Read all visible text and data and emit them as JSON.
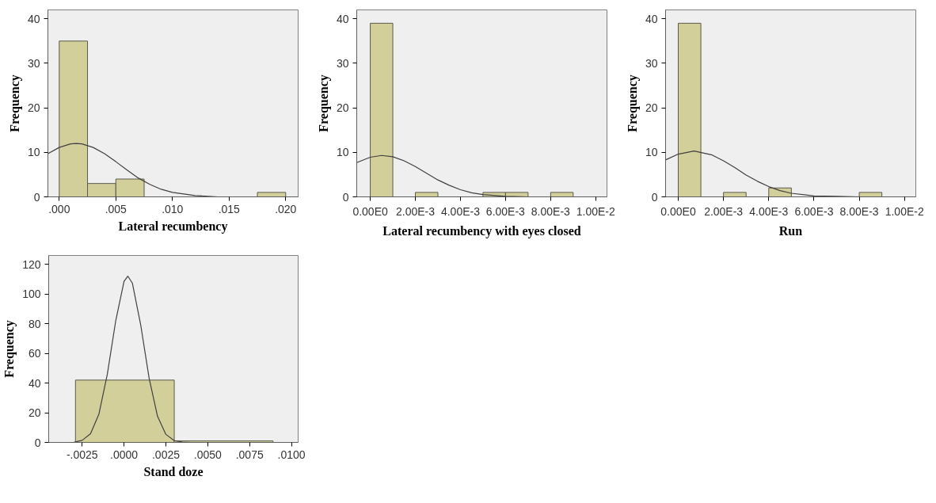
{
  "chart_data": [
    {
      "type": "histogram",
      "xlabel": "Lateral recumbency",
      "ylabel": "Frequency",
      "color": "#d3cf9b",
      "grid": false,
      "bins": [
        0,
        0.0025,
        0.005,
        0.0075,
        0.01,
        0.0125,
        0.015,
        0.0175,
        0.02
      ],
      "values": [
        35,
        3,
        4,
        0,
        0,
        0,
        0,
        1
      ],
      "xlim": [
        -0.001,
        0.0211
      ],
      "ylim": [
        0,
        42
      ],
      "xticks": [
        {
          "value": 0,
          "label": ".000"
        },
        {
          "value": 0.005,
          "label": ".005"
        },
        {
          "value": 0.01,
          "label": ".010"
        },
        {
          "value": 0.015,
          "label": ".015"
        },
        {
          "value": 0.02,
          "label": ".020"
        }
      ],
      "yticks": [
        0,
        10,
        20,
        30,
        40
      ],
      "series": [
        {
          "type": "line",
          "color": "#404040",
          "x": [
            -0.001,
            0,
            0.001,
            0.0015,
            0.002,
            0.003,
            0.004,
            0.005,
            0.006,
            0.007,
            0.008,
            0.009,
            0.01,
            0.012,
            0.014,
            0.016,
            0.02,
            0.0211
          ],
          "values": [
            9.7,
            11.1,
            11.9,
            12,
            11.9,
            11.1,
            9.7,
            7.9,
            6.0,
            4.2,
            2.8,
            1.7,
            1.0,
            0.3,
            0,
            0,
            0,
            0
          ]
        }
      ]
    },
    {
      "type": "histogram",
      "xlabel": "Lateral recumbency with eyes closed",
      "ylabel": "Frequency",
      "color": "#d3cf9b",
      "grid": false,
      "bins": [
        0,
        0.001,
        0.002,
        0.003,
        0.004,
        0.005,
        0.006,
        0.007,
        0.008,
        0.009,
        0.01
      ],
      "values": [
        39,
        0,
        1,
        0,
        0,
        1,
        1,
        0,
        1,
        0
      ],
      "xlim": [
        -0.0006,
        0.0105
      ],
      "ylim": [
        0,
        42
      ],
      "xticks": [
        {
          "value": 0,
          "label": "0.00E0"
        },
        {
          "value": 0.002,
          "label": "2.00E-3"
        },
        {
          "value": 0.004,
          "label": "4.00E-3"
        },
        {
          "value": 0.006,
          "label": "6.00E-3"
        },
        {
          "value": 0.008,
          "label": "8.00E-3"
        },
        {
          "value": 0.01,
          "label": "1.00E-2"
        }
      ],
      "yticks": [
        0,
        10,
        20,
        30,
        40
      ],
      "series": [
        {
          "type": "line",
          "color": "#404040",
          "x": [
            -0.0006,
            0,
            0.0005,
            0.001,
            0.0015,
            0.002,
            0.0025,
            0.003,
            0.0035,
            0.004,
            0.0045,
            0.005,
            0.006,
            0.007,
            0.0105
          ],
          "values": [
            7.7,
            8.9,
            9.3,
            9.0,
            8.1,
            6.8,
            5.3,
            3.8,
            2.6,
            1.6,
            0.9,
            0.5,
            0.1,
            0,
            0
          ]
        }
      ]
    },
    {
      "type": "histogram",
      "xlabel": "Run",
      "ylabel": "Frequency",
      "color": "#d3cf9b",
      "grid": false,
      "bins": [
        0,
        0.001,
        0.002,
        0.003,
        0.004,
        0.005,
        0.006,
        0.007,
        0.008,
        0.009,
        0.01
      ],
      "values": [
        39,
        0,
        1,
        0,
        2,
        0,
        0,
        0,
        1,
        0
      ],
      "xlim": [
        -0.00056,
        0.0105
      ],
      "ylim": [
        0,
        42
      ],
      "xticks": [
        {
          "value": 0,
          "label": "0.00E0"
        },
        {
          "value": 0.002,
          "label": "2.00E-3"
        },
        {
          "value": 0.004,
          "label": "4.00E-3"
        },
        {
          "value": 0.006,
          "label": "6.00E-3"
        },
        {
          "value": 0.008,
          "label": "8.00E-3"
        },
        {
          "value": 0.01,
          "label": "1.00E-2"
        }
      ],
      "yticks": [
        0,
        10,
        20,
        30,
        40
      ],
      "series": [
        {
          "type": "line",
          "color": "#404040",
          "x": [
            -0.00056,
            0,
            0.0007,
            0.0015,
            0.002,
            0.0025,
            0.003,
            0.0035,
            0.004,
            0.0045,
            0.005,
            0.006,
            0.007,
            0.008,
            0.0105
          ],
          "values": [
            8.3,
            9.6,
            10.3,
            9.4,
            8.1,
            6.6,
            4.9,
            3.5,
            2.3,
            1.4,
            0.8,
            0.2,
            0.1,
            0,
            0
          ]
        }
      ]
    },
    {
      "type": "histogram",
      "xlabel": "Stand doze",
      "ylabel": "Frequency",
      "color": "#d3cf9b",
      "grid": false,
      "bins": [
        -0.0029,
        0.003,
        0.0089
      ],
      "values": [
        42,
        1
      ],
      "xlim": [
        -0.0045,
        0.0104
      ],
      "ylim": [
        0,
        126
      ],
      "xticks": [
        {
          "value": -0.0025,
          "label": "-.0025"
        },
        {
          "value": 0,
          "label": ".0000"
        },
        {
          "value": 0.0025,
          "label": ".0025"
        },
        {
          "value": 0.005,
          "label": ".0050"
        },
        {
          "value": 0.0075,
          "label": ".0075"
        },
        {
          "value": 0.01,
          "label": ".0100"
        }
      ],
      "yticks": [
        0,
        20,
        40,
        60,
        80,
        100,
        120
      ],
      "series": [
        {
          "type": "line",
          "color": "#404040",
          "x": [
            -0.0045,
            -0.003,
            -0.0025,
            -0.002,
            -0.0015,
            -0.001,
            -0.0005,
            0,
            0.00023,
            0.0005,
            0.001,
            0.0015,
            0.002,
            0.0025,
            0.003,
            0.0035,
            0.004,
            0.0104
          ],
          "values": [
            0,
            0.1,
            1.4,
            5.9,
            19.1,
            45.8,
            81.7,
            108.6,
            112,
            107.3,
            78.9,
            43.2,
            17.6,
            5.4,
            1.2,
            0.2,
            0,
            0
          ]
        }
      ]
    }
  ]
}
